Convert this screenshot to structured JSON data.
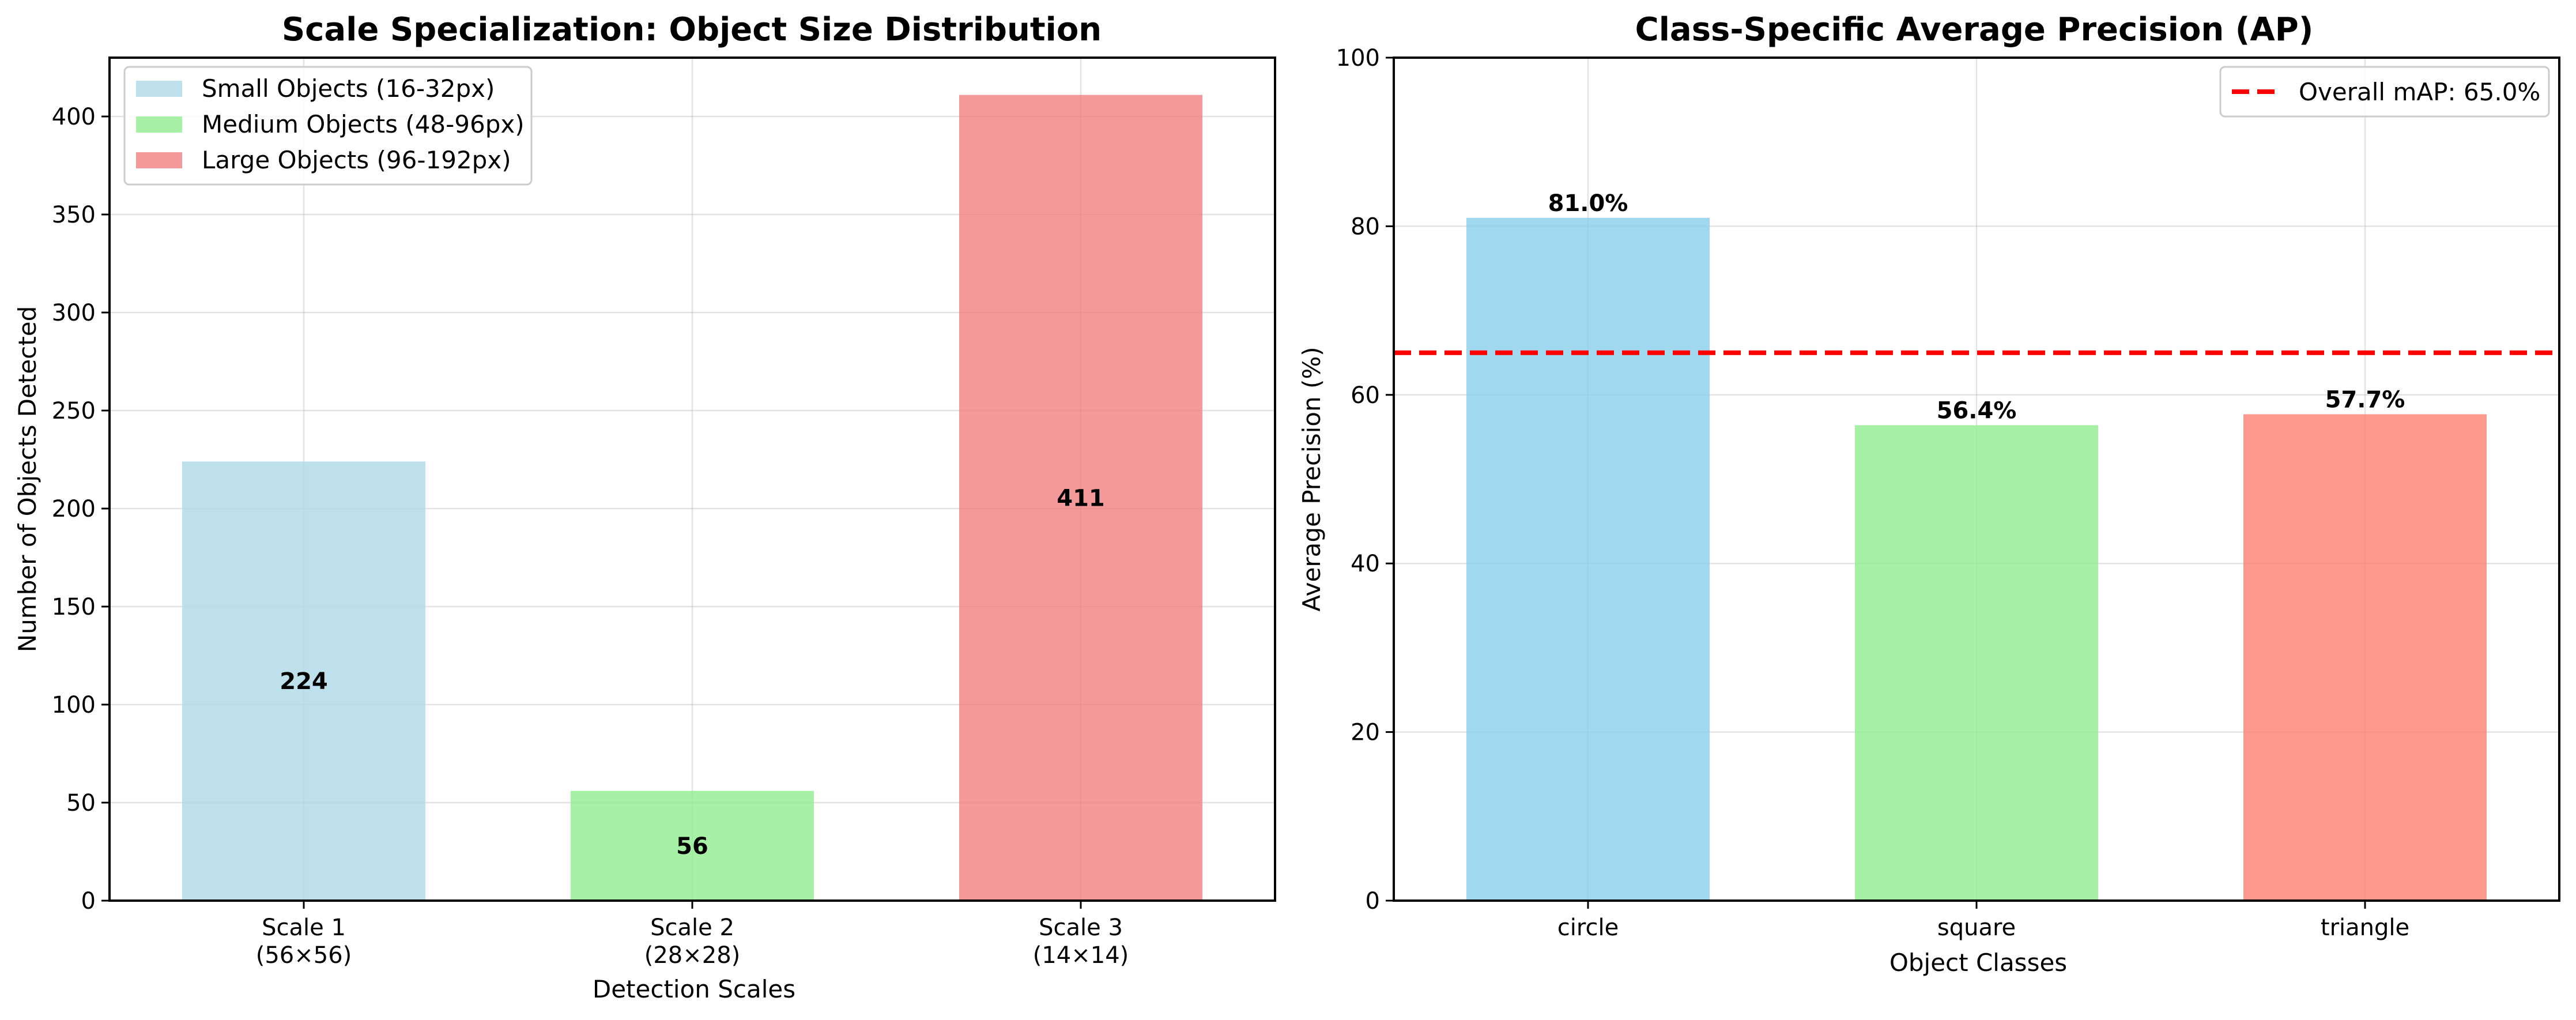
{
  "chart_data": [
    {
      "type": "bar",
      "title": "Scale Specialization: Object Size Distribution",
      "xlabel": "Detection Scales",
      "ylabel": "Number of Objects Detected",
      "categories": [
        {
          "line1": "Scale 1",
          "line2": "(56×56)"
        },
        {
          "line1": "Scale 2",
          "line2": "(28×28)"
        },
        {
          "line1": "Scale 3",
          "line2": "(14×14)"
        }
      ],
      "values": [
        224,
        56,
        411
      ],
      "value_labels": [
        "224",
        "56",
        "411"
      ],
      "colors": [
        "#add8e6",
        "#90ee90",
        "#f08080"
      ],
      "bar_alpha": 0.8,
      "ylim": [
        0,
        430
      ],
      "yticks": [
        0,
        50,
        100,
        150,
        200,
        250,
        300,
        350,
        400
      ],
      "grid": true,
      "legend_position": "top-left",
      "legend": [
        {
          "label": "Small Objects (16-32px)",
          "color": "#add8e6"
        },
        {
          "label": "Medium Objects (48-96px)",
          "color": "#90ee90"
        },
        {
          "label": "Large Objects (96-192px)",
          "color": "#f08080"
        }
      ]
    },
    {
      "type": "bar",
      "title": "Class-Specific Average Precision (AP)",
      "xlabel": "Object Classes",
      "ylabel": "Average Precision (%)",
      "categories": [
        "circle",
        "square",
        "triangle"
      ],
      "values": [
        81.0,
        56.4,
        57.7
      ],
      "value_labels": [
        "81.0%",
        "56.4%",
        "57.7%"
      ],
      "colors": [
        "#87ceeb",
        "#90ee90",
        "#fa8072"
      ],
      "bar_alpha": 0.8,
      "ylim": [
        0,
        100
      ],
      "yticks": [
        0,
        20,
        40,
        60,
        80,
        100
      ],
      "grid": true,
      "reference_line": {
        "value": 65.0,
        "label": "Overall mAP: 65.0%",
        "color": "#ff0000",
        "style": "dashed"
      },
      "legend_position": "top-right"
    }
  ]
}
